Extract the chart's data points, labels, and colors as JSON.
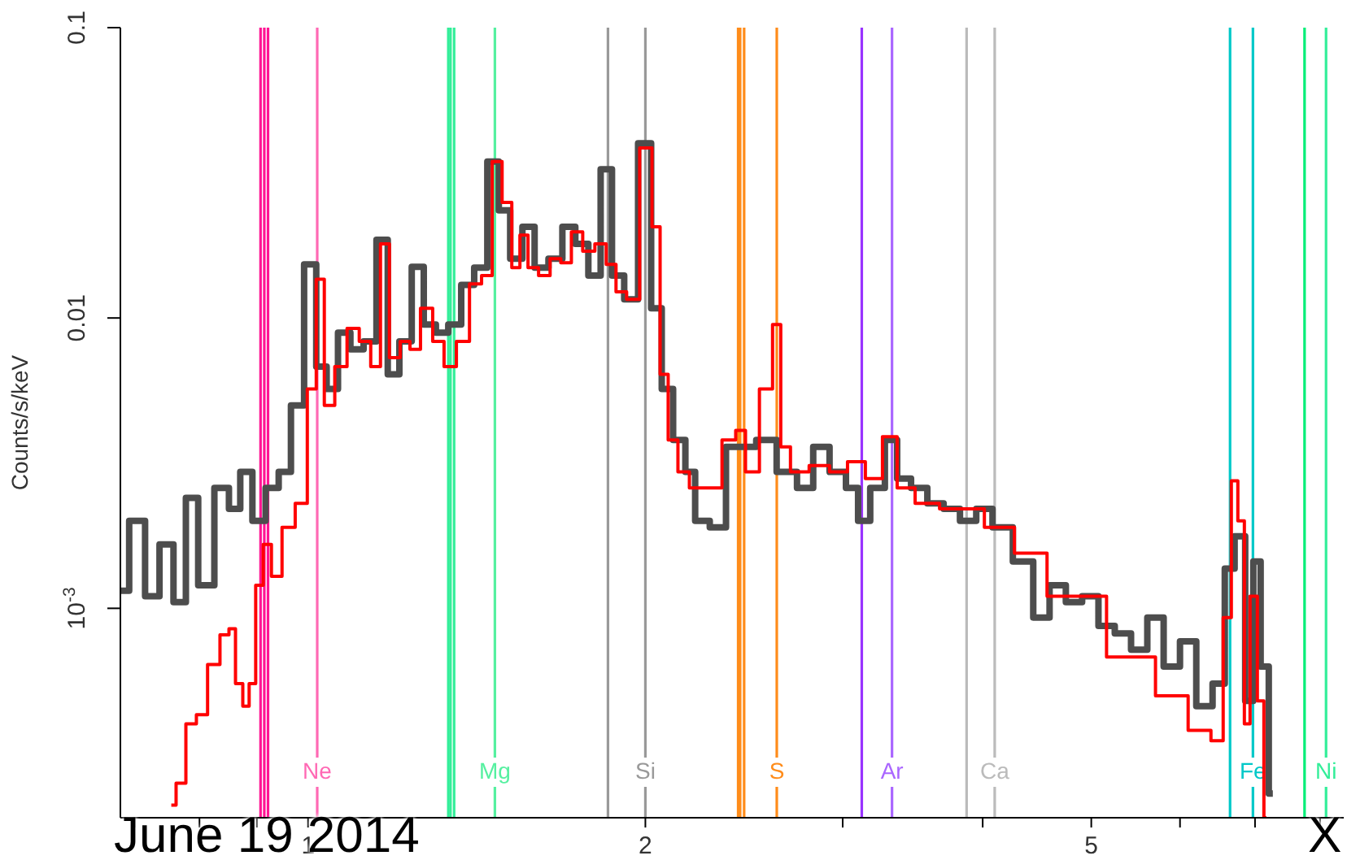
{
  "chart_data": {
    "type": "step",
    "ylabel": "Counts/s/keV",
    "log": "xy",
    "xlim": [
      0.68,
      8.4
    ],
    "ylim": [
      0.00019,
      0.1
    ],
    "xticks": [
      {
        "value": 0.7,
        "label": null
      },
      {
        "value": 0.8,
        "label": null
      },
      {
        "value": 0.9,
        "label": null
      },
      1,
      2,
      {
        "value": 3,
        "label": null
      },
      {
        "value": 4,
        "label": null
      },
      5,
      {
        "value": 6,
        "label": null
      },
      {
        "value": 7,
        "label": null
      },
      {
        "value": 8,
        "label": null
      }
    ],
    "yticks": [
      {
        "value": 0.001,
        "label": "10$^{-3}$"
      },
      0.01,
      0.1
    ],
    "series": [
      {
        "color": "#4d4d4d",
        "x": [
          0.681,
          0.704,
          0.727,
          0.747,
          0.77,
          0.786,
          0.81,
          0.84,
          0.86,
          0.88,
          0.904,
          0.929,
          0.954,
          0.977,
          1.007,
          1.027,
          1.051,
          1.076,
          1.106,
          1.136,
          1.166,
          1.19,
          1.223,
          1.252,
          1.285,
          1.316,
          1.352,
          1.388,
          1.426,
          1.465,
          1.495,
          1.535,
          1.572,
          1.614,
          1.664,
          1.709,
          1.755,
          1.803,
          1.846,
          1.889,
          1.941,
          2.0,
          2.048,
          2.089,
          2.146,
          2.197,
          2.234,
          2.333,
          2.388,
          2.47,
          2.554,
          2.686,
          2.777,
          2.871,
          2.97,
          3.071,
          3.122,
          3.228,
          3.316,
          3.395,
          3.511,
          3.63,
          3.754,
          3.882,
          4.014,
          4.15,
          4.364,
          4.513,
          4.667,
          4.825,
          4.99,
          5.16,
          5.336,
          5.517,
          5.705,
          5.9,
          6.101,
          6.309,
          6.523,
          6.634,
          6.792,
          6.929,
          7.022,
          7.141,
          7.261
        ],
        "values": [
          0.00115,
          0.002,
          0.0011,
          0.00166,
          0.00105,
          0.0024,
          0.0012,
          0.0026,
          0.0022,
          0.00295,
          0.002,
          0.0026,
          0.00295,
          0.005,
          0.0153,
          0.0068,
          0.0057,
          0.0089,
          0.0078,
          0.0083,
          0.0186,
          0.0064,
          0.0083,
          0.015,
          0.0095,
          0.0089,
          0.0095,
          0.013,
          0.0149,
          0.0346,
          0.0235,
          0.016,
          0.0206,
          0.0149,
          0.016,
          0.0206,
          0.018,
          0.014,
          0.0325,
          0.014,
          0.0116,
          0.04,
          0.0108,
          0.0057,
          0.0038,
          0.00295,
          0.002,
          0.0019,
          0.0036,
          0.0036,
          0.0038,
          0.00295,
          0.0026,
          0.0036,
          0.00295,
          0.0026,
          0.002,
          0.0026,
          0.0038,
          0.0028,
          0.0026,
          0.0023,
          0.0022,
          0.002,
          0.0022,
          0.0019,
          0.00145,
          0.00093,
          0.0012,
          0.00105,
          0.0011,
          0.00087,
          0.00082,
          0.00072,
          0.00093,
          0.00063,
          0.00077,
          0.00046,
          0.00055,
          0.00137,
          0.00177,
          0.00048,
          0.00145,
          0.00063,
          0.00023
        ]
      },
      {
        "color": "#ff0000",
        "x": [
          0.755,
          0.77,
          0.786,
          0.804,
          0.823,
          0.846,
          0.854,
          0.869,
          0.88,
          0.892,
          0.904,
          0.92,
          0.935,
          0.961,
          0.987,
          1.01,
          1.024,
          1.044,
          1.069,
          1.098,
          1.124,
          1.151,
          1.17,
          1.194,
          1.223,
          1.243,
          1.277,
          1.307,
          1.338,
          1.375,
          1.412,
          1.445,
          1.475,
          1.505,
          1.535,
          1.556,
          1.587,
          1.625,
          1.664,
          1.698,
          1.738,
          1.779,
          1.827,
          1.864,
          1.902,
          1.947,
          2.007,
          2.048,
          2.075,
          2.117,
          2.16,
          2.219,
          2.295,
          2.388,
          2.428,
          2.486,
          2.571,
          2.624,
          2.659,
          2.731,
          2.871,
          2.97,
          3.091,
          3.196,
          3.316,
          3.395,
          3.57,
          3.754,
          3.948,
          4.081,
          4.22,
          4.32,
          4.825,
          5.517,
          5.9,
          6.309,
          6.48,
          6.634,
          6.701,
          6.814,
          6.883,
          6.975,
          7.093,
          7.165
        ],
        "values": [
          0.00021,
          0.00025,
          0.0004,
          0.00043,
          0.00064,
          0.00081,
          0.00085,
          0.00055,
          0.00046,
          0.00055,
          0.0012,
          0.00166,
          0.00129,
          0.0019,
          0.0023,
          0.0057,
          0.0136,
          0.005,
          0.0068,
          0.0092,
          0.0083,
          0.0068,
          0.018,
          0.0073,
          0.0083,
          0.0078,
          0.0108,
          0.0083,
          0.0068,
          0.0083,
          0.0131,
          0.014,
          0.0346,
          0.025,
          0.0149,
          0.0193,
          0.0149,
          0.014,
          0.016,
          0.0155,
          0.0198,
          0.017,
          0.018,
          0.0153,
          0.0123,
          0.0116,
          0.0385,
          0.0206,
          0.0064,
          0.0038,
          0.00295,
          0.0026,
          0.0026,
          0.0038,
          0.0041,
          0.00295,
          0.0057,
          0.0095,
          0.0036,
          0.00295,
          0.0031,
          0.00295,
          0.0032,
          0.0028,
          0.0039,
          0.0026,
          0.0023,
          0.0022,
          0.0022,
          0.0019,
          0.0019,
          0.00155,
          0.0011,
          0.00068,
          0.0005,
          0.00038,
          0.00035,
          0.00093,
          0.00275,
          0.002,
          0.0004,
          0.0011,
          0.00048,
          0.00019
        ]
      }
    ],
    "ref_lines": [
      {
        "axis": "x",
        "value": 0.907,
        "color": "#ff1493"
      },
      {
        "axis": "x",
        "value": 0.914,
        "color": "#ff1493"
      },
      {
        "axis": "x",
        "value": 0.921,
        "color": "#ff1493"
      },
      {
        "axis": "x",
        "value": 1.019,
        "color": "#ff69b4",
        "label": "Ne"
      },
      {
        "axis": "x",
        "value": 1.334,
        "color": "#33ee99"
      },
      {
        "axis": "x",
        "value": 1.34,
        "color": "#33ee99"
      },
      {
        "axis": "x",
        "value": 1.35,
        "color": "#33ee99"
      },
      {
        "axis": "x",
        "value": 1.468,
        "color": "#55f0a0",
        "label": "Mg"
      },
      {
        "axis": "x",
        "value": 1.852,
        "color": "#999999"
      },
      {
        "axis": "x",
        "value": 2.0,
        "color": "#999999",
        "label": "Si"
      },
      {
        "axis": "x",
        "value": 2.42,
        "color": "#ff8c1a"
      },
      {
        "axis": "x",
        "value": 2.43,
        "color": "#ff8c1a"
      },
      {
        "axis": "x",
        "value": 2.45,
        "color": "#ff8c1a"
      },
      {
        "axis": "x",
        "value": 2.62,
        "color": "#ff8c1a",
        "label": "S"
      },
      {
        "axis": "x",
        "value": 3.12,
        "color": "#9933ff"
      },
      {
        "axis": "x",
        "value": 3.32,
        "color": "#aa66ff",
        "label": "Ar"
      },
      {
        "axis": "x",
        "value": 3.87,
        "color": "#bbbbbb"
      },
      {
        "axis": "x",
        "value": 4.1,
        "color": "#bbbbbb",
        "label": "Ca"
      },
      {
        "axis": "x",
        "value": 6.65,
        "color": "#00c8c8"
      },
      {
        "axis": "x",
        "value": 6.97,
        "color": "#00c8c8",
        "label": "Fe"
      },
      {
        "axis": "x",
        "value": 7.75,
        "color": "#00ee77"
      },
      {
        "axis": "x",
        "value": 8.1,
        "color": "#33ee99",
        "label": "Ni"
      }
    ],
    "annotations": [
      "June 19 2014",
      "X"
    ]
  }
}
